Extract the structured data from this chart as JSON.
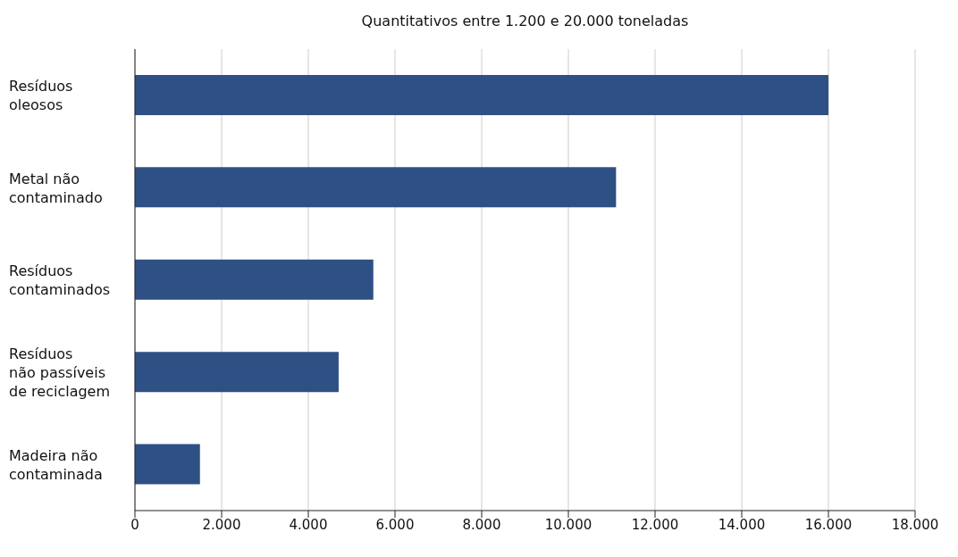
{
  "chart_data": {
    "type": "bar",
    "orientation": "horizontal",
    "title": "Quantitativos entre 1.200 e 20.000 toneladas",
    "categories": [
      "Resíduos\noleosos",
      "Metal não\ncontaminado",
      "Resíduos\ncontaminados",
      "Resíduos\nnão passíveis\nde reciclagem",
      "Madeira não\ncontaminada"
    ],
    "values": [
      16000,
      11100,
      5500,
      4700,
      1500
    ],
    "color": "#2e5084",
    "xlim": [
      0,
      18000
    ],
    "xticks": [
      {
        "value": 0,
        "label": "0"
      },
      {
        "value": 2000,
        "label": "2.000"
      },
      {
        "value": 4000,
        "label": "4.000"
      },
      {
        "value": 6000,
        "label": "6.000"
      },
      {
        "value": 8000,
        "label": "8.000"
      },
      {
        "value": 10000,
        "label": "10.000"
      },
      {
        "value": 12000,
        "label": "12.000"
      },
      {
        "value": 14000,
        "label": "14.000"
      },
      {
        "value": 16000,
        "label": "16.000"
      },
      {
        "value": 18000,
        "label": "18.000"
      }
    ],
    "grid": "x",
    "legend": false
  }
}
